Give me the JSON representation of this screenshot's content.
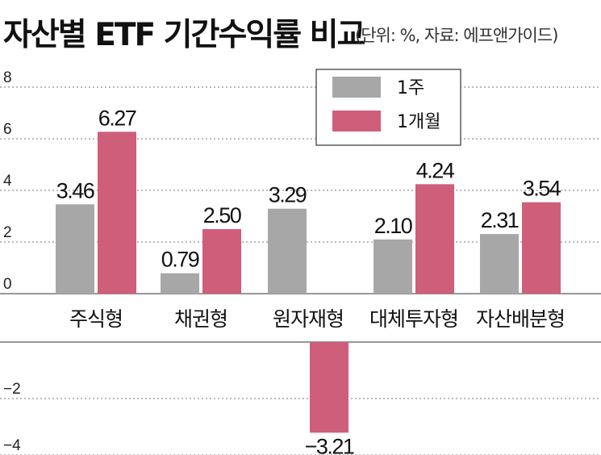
{
  "header": {
    "title": "자산별 ETF 기간수익률 비교",
    "subtitle": "(단위: %, 자료: 에프앤가이드)"
  },
  "colors": {
    "week": "#a7a7a7",
    "month": "#cf5e7b",
    "highlight_label": "#d9537a",
    "grid": "#777777"
  },
  "chart_data": {
    "type": "bar",
    "title": "자산별 ETF 기간수익률 비교",
    "unit": "%",
    "categories": [
      "주식형",
      "채권형",
      "원자재형",
      "대체투자형",
      "자산배분형"
    ],
    "series": [
      {
        "name": "1주",
        "values": [
          3.46,
          0.79,
          3.29,
          2.1,
          2.31
        ],
        "labels": [
          "3.46",
          "0.79",
          "3.29",
          "2.10",
          "2.31"
        ]
      },
      {
        "name": "1개월",
        "values": [
          6.27,
          2.5,
          -3.21,
          4.24,
          3.54
        ],
        "labels": [
          "6.27",
          "2.50",
          "−3.21",
          "4.24",
          "3.54"
        ]
      }
    ],
    "yticks": [
      "8",
      "6",
      "4",
      "2",
      "0",
      "−2",
      "−4"
    ],
    "ytick_values": [
      8,
      6,
      4,
      2,
      0,
      -2,
      -4
    ],
    "highlighted_label": {
      "series": 0,
      "category": 2
    },
    "grid": true,
    "legend": "top-right"
  }
}
